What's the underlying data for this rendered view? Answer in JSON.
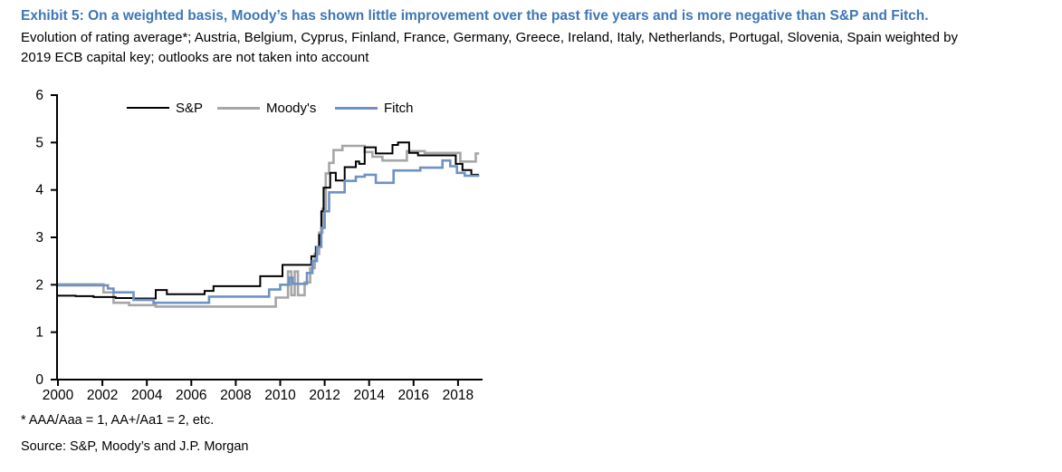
{
  "header": {
    "exhibit_title": "Exhibit 5: On a weighted basis, Moody’s has shown little improvement over the past five years and is more negative than S&P and Fitch.",
    "subtitle_line1": "Evolution of rating average*; Austria, Belgium, Cyprus, Finland, France, Germany, Greece, Ireland, Italy, Netherlands, Portugal, Slovenia, Spain weighted by",
    "subtitle_line2": "2019 ECB capital key; outlooks are not taken into account"
  },
  "colors": {
    "title_blue": "#3f76b5",
    "axis": "#000000",
    "sp_line": "#000000",
    "moodys_line": "#a6a6a6",
    "fitch_line": "#6e92c4"
  },
  "chart_data": {
    "type": "line",
    "line_style": "step-after",
    "title": "",
    "xlabel": "",
    "ylabel": "",
    "xlim": [
      2000,
      2019.2
    ],
    "ylim": [
      0,
      6
    ],
    "x_ticks": [
      2000,
      2002,
      2004,
      2006,
      2008,
      2010,
      2012,
      2014,
      2016,
      2018
    ],
    "y_ticks": [
      0,
      1,
      2,
      3,
      4,
      5,
      6
    ],
    "grid": false,
    "legend_position": "top-inside",
    "x_end": 2018.95,
    "series": [
      {
        "name": "S&P",
        "color": "#000000",
        "width": 2,
        "points": [
          [
            2000.0,
            1.77
          ],
          [
            2000.8,
            1.76
          ],
          [
            2001.6,
            1.74
          ],
          [
            2002.6,
            1.72
          ],
          [
            2003.4,
            1.71
          ],
          [
            2004.4,
            1.89
          ],
          [
            2004.9,
            1.8
          ],
          [
            2006.6,
            1.87
          ],
          [
            2007.0,
            1.97
          ],
          [
            2009.1,
            2.18
          ],
          [
            2010.1,
            2.42
          ],
          [
            2011.4,
            2.6
          ],
          [
            2011.6,
            2.8
          ],
          [
            2011.75,
            3.05
          ],
          [
            2011.85,
            3.55
          ],
          [
            2011.95,
            4.05
          ],
          [
            2012.25,
            4.36
          ],
          [
            2012.5,
            4.2
          ],
          [
            2012.9,
            4.48
          ],
          [
            2013.4,
            4.6
          ],
          [
            2013.55,
            4.55
          ],
          [
            2013.8,
            4.9
          ],
          [
            2014.3,
            4.77
          ],
          [
            2015.05,
            4.95
          ],
          [
            2015.3,
            5.0
          ],
          [
            2015.8,
            4.78
          ],
          [
            2016.2,
            4.73
          ],
          [
            2017.9,
            4.55
          ],
          [
            2018.2,
            4.42
          ],
          [
            2018.6,
            4.32
          ],
          [
            2018.9,
            4.3
          ]
        ]
      },
      {
        "name": "Moody's",
        "color": "#a6a6a6",
        "width": 2.6,
        "points": [
          [
            2000.0,
            2.01
          ],
          [
            2002.05,
            1.84
          ],
          [
            2002.5,
            1.62
          ],
          [
            2003.2,
            1.57
          ],
          [
            2004.4,
            1.54
          ],
          [
            2009.8,
            1.73
          ],
          [
            2010.35,
            2.28
          ],
          [
            2010.5,
            1.78
          ],
          [
            2010.65,
            2.28
          ],
          [
            2010.8,
            1.78
          ],
          [
            2011.1,
            2.05
          ],
          [
            2011.35,
            2.35
          ],
          [
            2011.55,
            2.65
          ],
          [
            2011.75,
            3.1
          ],
          [
            2011.9,
            3.6
          ],
          [
            2012.05,
            4.35
          ],
          [
            2012.2,
            4.57
          ],
          [
            2012.4,
            4.84
          ],
          [
            2012.8,
            4.93
          ],
          [
            2013.8,
            4.8
          ],
          [
            2014.15,
            4.7
          ],
          [
            2014.6,
            4.62
          ],
          [
            2015.7,
            4.82
          ],
          [
            2016.5,
            4.78
          ],
          [
            2018.1,
            4.6
          ],
          [
            2018.8,
            4.77
          ]
        ]
      },
      {
        "name": "Fitch",
        "color": "#6e92c4",
        "width": 2.6,
        "points": [
          [
            2000.0,
            1.99
          ],
          [
            2002.25,
            1.92
          ],
          [
            2002.5,
            1.84
          ],
          [
            2003.4,
            1.68
          ],
          [
            2004.3,
            1.62
          ],
          [
            2006.8,
            1.75
          ],
          [
            2009.5,
            1.9
          ],
          [
            2010.0,
            2.0
          ],
          [
            2010.4,
            2.15
          ],
          [
            2010.55,
            2.02
          ],
          [
            2011.2,
            2.25
          ],
          [
            2011.45,
            2.5
          ],
          [
            2011.65,
            2.8
          ],
          [
            2011.85,
            3.2
          ],
          [
            2012.0,
            3.55
          ],
          [
            2012.2,
            3.95
          ],
          [
            2012.9,
            4.19
          ],
          [
            2013.4,
            4.28
          ],
          [
            2013.8,
            4.32
          ],
          [
            2014.3,
            4.15
          ],
          [
            2015.1,
            4.41
          ],
          [
            2016.3,
            4.47
          ],
          [
            2017.3,
            4.62
          ],
          [
            2017.65,
            4.5
          ],
          [
            2017.95,
            4.36
          ],
          [
            2018.3,
            4.3
          ],
          [
            2018.9,
            4.3
          ]
        ]
      }
    ]
  },
  "footnotes": {
    "definition": "* AAA/Aaa = 1, AA+/Aa1 = 2, etc.",
    "source": "Source: S&P, Moody’s and J.P. Morgan"
  }
}
